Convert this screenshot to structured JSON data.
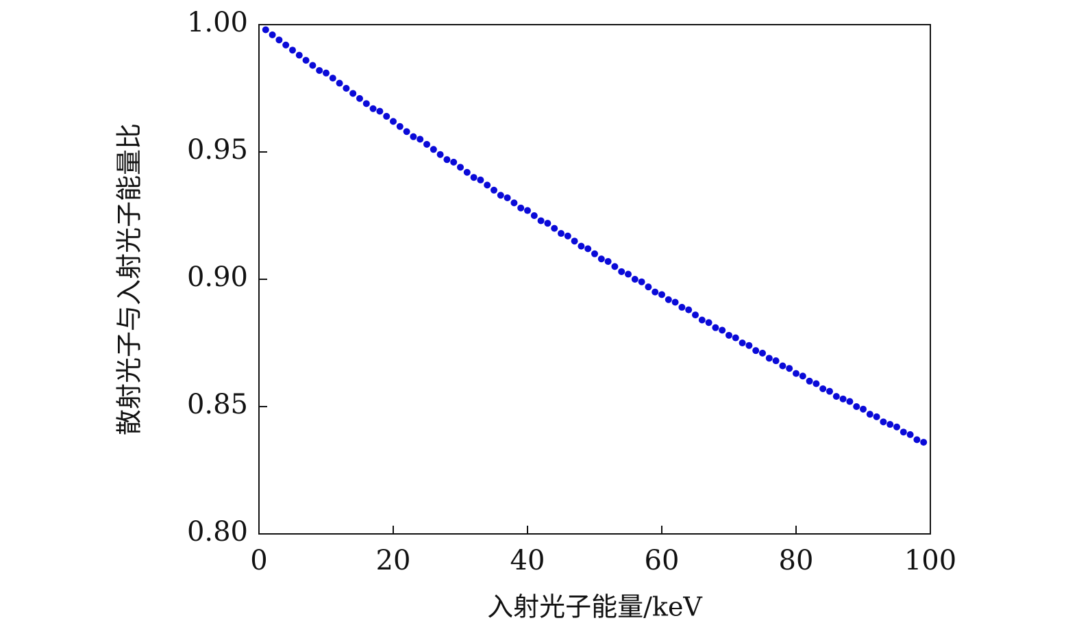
{
  "chart_data": {
    "type": "scatter",
    "xlabel": "入射光子能量/keV",
    "ylabel": "散射光子与入射光子能量比",
    "xlim": [
      0,
      100
    ],
    "xticks": [
      0,
      20,
      40,
      60,
      80,
      100
    ],
    "ylim": [
      0.8,
      1.0
    ],
    "yticks": [
      {
        "value": 0.8,
        "label": "0.80"
      },
      {
        "value": 0.85,
        "label": "0.85"
      },
      {
        "value": 0.9,
        "label": "0.90"
      },
      {
        "value": 0.95,
        "label": "0.95"
      },
      {
        "value": 1.0,
        "label": "1.00"
      }
    ],
    "series": [
      {
        "color": "#0a0ad8",
        "x": [
          1,
          2,
          3,
          4,
          5,
          6,
          7,
          8,
          9,
          10,
          11,
          12,
          13,
          14,
          15,
          16,
          17,
          18,
          19,
          20,
          21,
          22,
          23,
          24,
          25,
          26,
          27,
          28,
          29,
          30,
          31,
          32,
          33,
          34,
          35,
          36,
          37,
          38,
          39,
          40,
          41,
          42,
          43,
          44,
          45,
          46,
          47,
          48,
          49,
          50,
          51,
          52,
          53,
          54,
          55,
          56,
          57,
          58,
          59,
          60,
          61,
          62,
          63,
          64,
          65,
          66,
          67,
          68,
          69,
          70,
          71,
          72,
          73,
          74,
          75,
          76,
          77,
          78,
          79,
          80,
          81,
          82,
          83,
          84,
          85,
          86,
          87,
          88,
          89,
          90,
          91,
          92,
          93,
          94,
          95,
          96,
          97,
          98,
          99
        ],
        "values": [
          0.998,
          0.996,
          0.994,
          0.992,
          0.99,
          0.988,
          0.986,
          0.984,
          0.982,
          0.981,
          0.979,
          0.977,
          0.975,
          0.973,
          0.971,
          0.969,
          0.967,
          0.966,
          0.964,
          0.962,
          0.96,
          0.958,
          0.956,
          0.955,
          0.953,
          0.951,
          0.949,
          0.947,
          0.946,
          0.944,
          0.942,
          0.94,
          0.939,
          0.937,
          0.935,
          0.933,
          0.932,
          0.93,
          0.928,
          0.927,
          0.925,
          0.923,
          0.922,
          0.92,
          0.918,
          0.917,
          0.915,
          0.913,
          0.912,
          0.91,
          0.908,
          0.907,
          0.905,
          0.903,
          0.902,
          0.9,
          0.899,
          0.897,
          0.895,
          0.894,
          0.892,
          0.891,
          0.889,
          0.888,
          0.886,
          0.884,
          0.883,
          0.881,
          0.88,
          0.878,
          0.877,
          0.875,
          0.874,
          0.872,
          0.871,
          0.869,
          0.868,
          0.866,
          0.865,
          0.863,
          0.862,
          0.86,
          0.859,
          0.857,
          0.856,
          0.854,
          0.853,
          0.852,
          0.85,
          0.849,
          0.847,
          0.846,
          0.844,
          0.843,
          0.842,
          0.84,
          0.839,
          0.837,
          0.836
        ]
      }
    ]
  }
}
